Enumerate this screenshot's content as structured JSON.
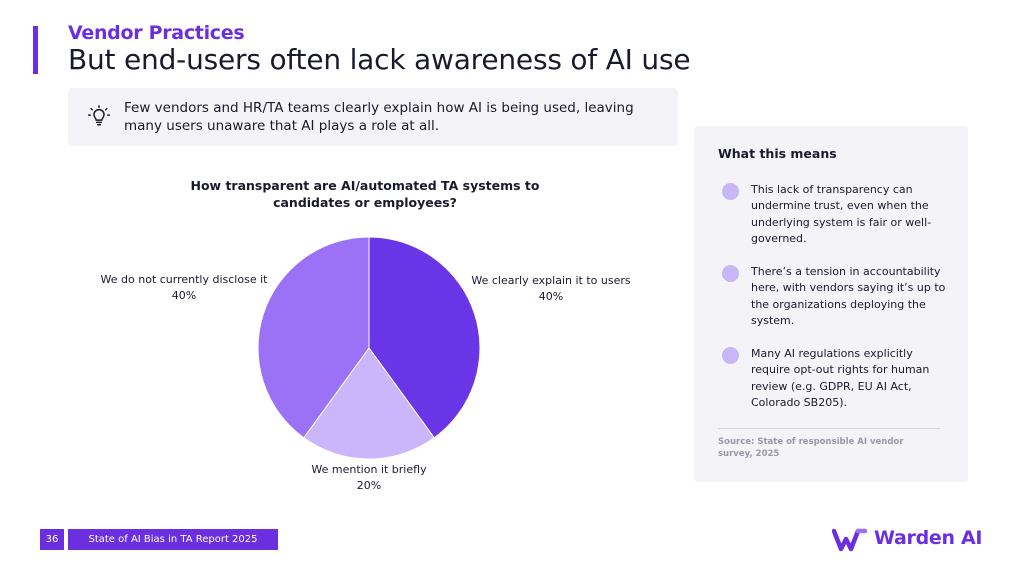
{
  "header": {
    "eyebrow": "Vendor Practices",
    "title": "But end-users often lack awareness of AI use"
  },
  "callout": {
    "icon": "lightbulb-icon",
    "text": "Few vendors and HR/TA teams clearly explain how AI is being used, leaving many users unaware that AI plays a role at all."
  },
  "chart_data": {
    "type": "pie",
    "title": "How transparent are AI/automated TA systems to candidates or employees?",
    "slices": [
      {
        "label": "We clearly explain it to users",
        "value": 40,
        "value_label": "40%",
        "color": "#6a35e6"
      },
      {
        "label": "We mention it briefly",
        "value": 20,
        "value_label": "20%",
        "color": "#cbb6fb"
      },
      {
        "label": "We do not currently disclose it",
        "value": 40,
        "value_label": "40%",
        "color": "#9b71f6"
      }
    ]
  },
  "panel": {
    "title": "What this means",
    "items": [
      {
        "text": "This lack of transparency can undermine trust, even when the underlying system is fair or well-governed."
      },
      {
        "text": "There’s a tension in accountability here, with vendors saying it’s up to the organizations deploying the system."
      },
      {
        "text": "Many AI regulations explicitly require opt-out rights for human review (e.g. GDPR, EU AI Act, Colorado SB205)."
      }
    ],
    "source": "Source: State of responsible AI vendor survey, 2025"
  },
  "footer": {
    "page_number": "36",
    "report_title": "State of AI Bias in TA Report 2025"
  },
  "logo": {
    "name": "Warden AI",
    "color": "#6b2fe0"
  },
  "colors": {
    "accent": "#6b2fe0",
    "panel_bg": "#f4f3f8",
    "bullet": "#c9b6f7"
  }
}
